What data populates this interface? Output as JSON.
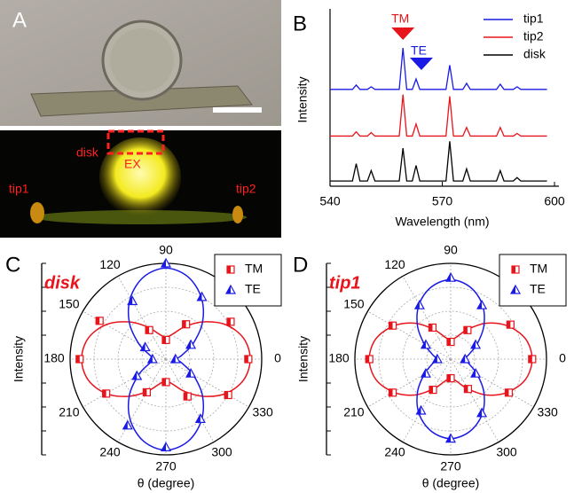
{
  "panel_labels": [
    "A",
    "B",
    "C",
    "D"
  ],
  "panel_a": {
    "labels": [
      "disk",
      "EX",
      "tip1",
      "tip2"
    ]
  },
  "chart_data": [
    {
      "type": "line",
      "xlabel": "Wavelength (nm)",
      "ylabel": "Intensity",
      "x": [
        540,
        546,
        547,
        548,
        550,
        551,
        552,
        558.5,
        559.5,
        560.5,
        562,
        563,
        564,
        571,
        572,
        573,
        575.5,
        576.5,
        577.5,
        584.5,
        585.5,
        586.5,
        589,
        590,
        591,
        598
      ],
      "xlim": [
        540,
        600
      ],
      "xticks": [
        540,
        570,
        600
      ],
      "ylim": [
        0,
        10
      ],
      "legend": "upper right",
      "series": [
        {
          "name": "tip1",
          "color": "#1a1ae6",
          "values": [
            5.6,
            5.6,
            5.85,
            5.6,
            5.6,
            5.75,
            5.6,
            5.6,
            8.0,
            5.6,
            5.6,
            6.2,
            5.6,
            5.6,
            7.0,
            5.6,
            5.6,
            5.95,
            5.6,
            5.6,
            5.9,
            5.6,
            5.6,
            5.75,
            5.6,
            5.6
          ]
        },
        {
          "name": "tip2",
          "color": "#e8141c",
          "values": [
            2.9,
            2.9,
            3.15,
            2.9,
            2.9,
            3.1,
            2.9,
            2.9,
            5.3,
            2.9,
            2.9,
            3.6,
            2.9,
            2.9,
            5.2,
            2.9,
            2.9,
            3.4,
            2.9,
            2.9,
            3.4,
            2.9,
            2.9,
            3.05,
            2.9,
            2.9
          ]
        },
        {
          "name": "disk",
          "color": "#000000",
          "values": [
            0.3,
            0.3,
            1.3,
            0.3,
            0.3,
            0.9,
            0.3,
            0.3,
            2.2,
            0.3,
            0.3,
            1.2,
            0.3,
            0.3,
            2.6,
            0.3,
            0.3,
            1.0,
            0.3,
            0.3,
            0.9,
            0.3,
            0.3,
            0.5,
            0.3,
            0.3
          ]
        }
      ],
      "annotations": [
        {
          "text": "TM",
          "x": 559.5,
          "color": "#e8141c"
        },
        {
          "text": "TE",
          "x": 563,
          "color": "#1a1ae6"
        }
      ]
    },
    {
      "type": "polar",
      "title": "disk",
      "xlabel": "θ (degree)",
      "ylabel": "Intensity",
      "theta_ticks": [
        0,
        90,
        120,
        150,
        180,
        210,
        240,
        270,
        300,
        330
      ],
      "rlim": [
        0,
        1
      ],
      "rticks": [
        0.25,
        0.5,
        0.75,
        1
      ],
      "theta": [
        0,
        30,
        60,
        90,
        120,
        150,
        180,
        210,
        240,
        270,
        300,
        330
      ],
      "fit_theta": [
        0,
        15,
        30,
        45,
        60,
        75,
        90,
        105,
        120,
        135,
        150,
        165,
        180,
        195,
        210,
        225,
        240,
        255,
        270,
        285,
        300,
        315,
        330,
        345
      ],
      "series": [
        {
          "name": "TM",
          "color": "#e8141c",
          "marker": "square",
          "values": [
            0.86,
            0.78,
            0.42,
            0.2,
            0.35,
            0.8,
            0.9,
            0.72,
            0.4,
            0.24,
            0.45,
            0.75
          ],
          "fit_values": [
            0.88,
            0.84,
            0.72,
            0.55,
            0.39,
            0.27,
            0.23,
            0.27,
            0.39,
            0.55,
            0.72,
            0.84,
            0.88,
            0.84,
            0.72,
            0.55,
            0.39,
            0.27,
            0.23,
            0.27,
            0.39,
            0.55,
            0.72,
            0.84
          ]
        },
        {
          "name": "TE",
          "color": "#1a1ae6",
          "marker": "triangle",
          "values": [
            0.1,
            0.3,
            0.75,
            1.0,
            0.7,
            0.25,
            0.14,
            0.35,
            0.8,
            0.92,
            0.72,
            0.3
          ],
          "fit_values": [
            0.12,
            0.18,
            0.33,
            0.54,
            0.74,
            0.89,
            0.95,
            0.89,
            0.74,
            0.54,
            0.33,
            0.18,
            0.12,
            0.18,
            0.33,
            0.54,
            0.74,
            0.89,
            0.95,
            0.89,
            0.74,
            0.54,
            0.33,
            0.18
          ]
        }
      ]
    },
    {
      "type": "polar",
      "title": "tip1",
      "xlabel": "θ (degree)",
      "ylabel": "Intensity",
      "theta_ticks": [
        0,
        90,
        120,
        150,
        180,
        210,
        240,
        270,
        300,
        330
      ],
      "rlim": [
        0,
        1
      ],
      "rticks": [
        0.25,
        0.5,
        0.75,
        1
      ],
      "theta": [
        0,
        30,
        60,
        90,
        120,
        150,
        180,
        210,
        240,
        270,
        300,
        330
      ],
      "fit_theta": [
        0,
        15,
        30,
        45,
        60,
        75,
        90,
        105,
        120,
        135,
        150,
        165,
        180,
        195,
        210,
        225,
        240,
        255,
        270,
        285,
        300,
        315,
        330,
        345
      ],
      "series": [
        {
          "name": "TM",
          "color": "#e8141c",
          "marker": "square",
          "values": [
            0.85,
            0.72,
            0.35,
            0.18,
            0.38,
            0.7,
            0.85,
            0.7,
            0.37,
            0.2,
            0.36,
            0.7
          ],
          "fit_values": [
            0.85,
            0.81,
            0.69,
            0.53,
            0.36,
            0.24,
            0.2,
            0.24,
            0.36,
            0.53,
            0.69,
            0.81,
            0.85,
            0.81,
            0.69,
            0.53,
            0.36,
            0.24,
            0.2,
            0.24,
            0.36,
            0.53,
            0.69,
            0.81
          ]
        },
        {
          "name": "TE",
          "color": "#1a1ae6",
          "marker": "triangle",
          "values": [
            0.15,
            0.3,
            0.65,
            0.85,
            0.65,
            0.3,
            0.14,
            0.3,
            0.62,
            0.83,
            0.65,
            0.3
          ],
          "fit_values": [
            0.15,
            0.2,
            0.32,
            0.49,
            0.66,
            0.78,
            0.83,
            0.78,
            0.66,
            0.49,
            0.32,
            0.2,
            0.15,
            0.2,
            0.32,
            0.49,
            0.66,
            0.78,
            0.83,
            0.78,
            0.66,
            0.49,
            0.32,
            0.2
          ]
        }
      ]
    }
  ]
}
